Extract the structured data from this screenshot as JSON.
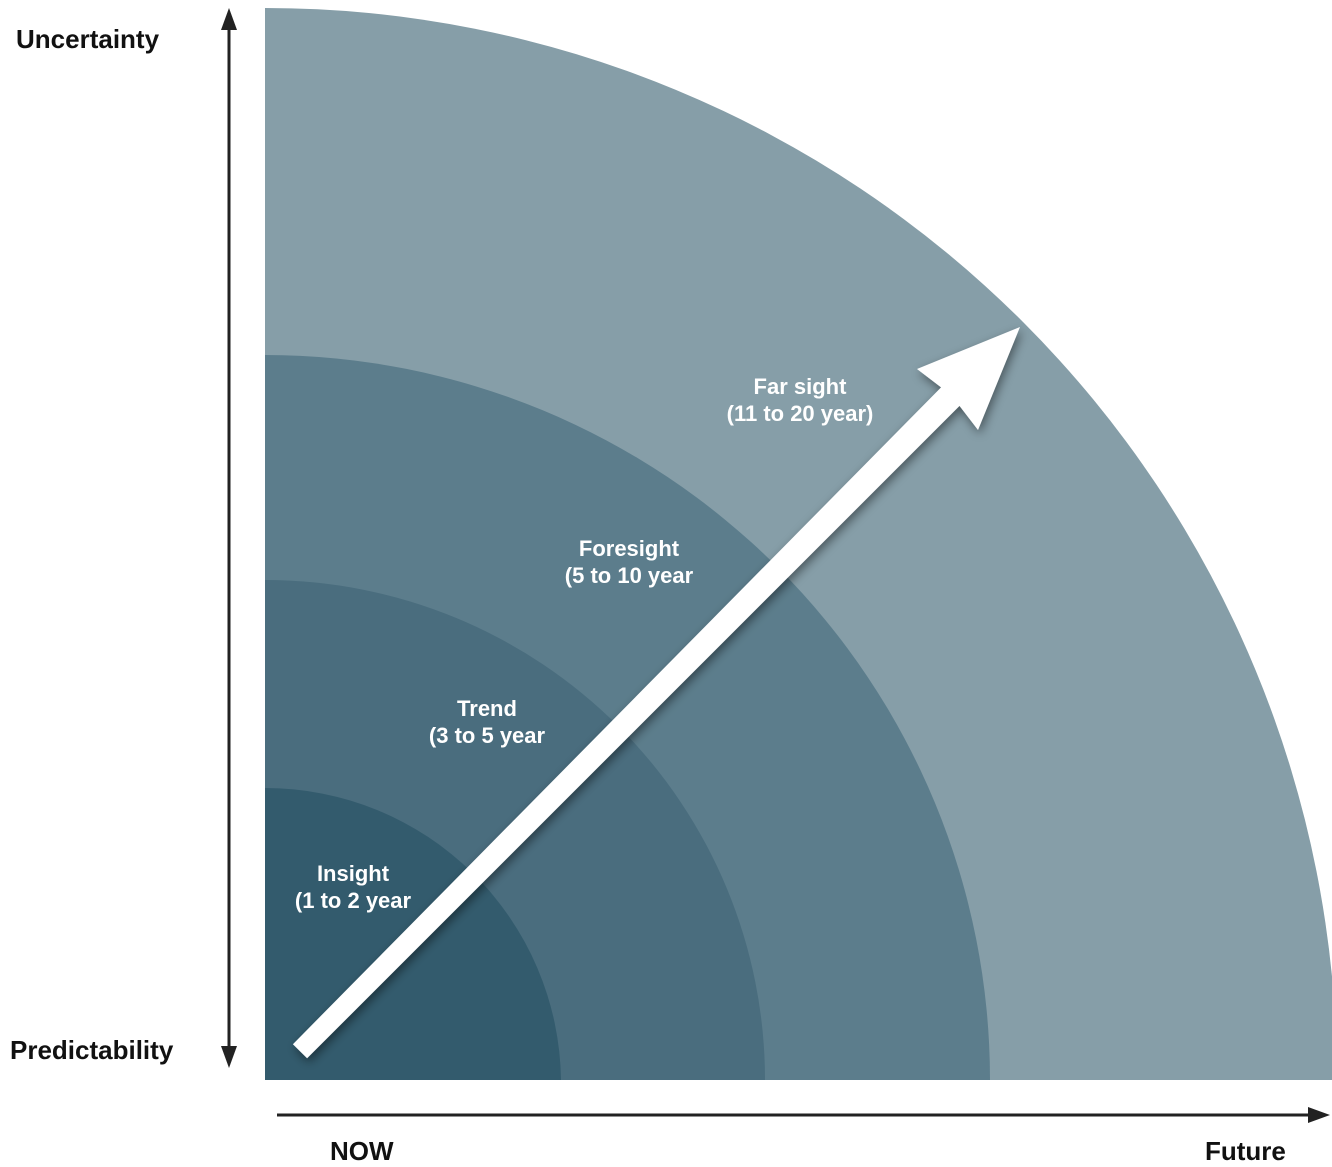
{
  "axis": {
    "y_top": "Uncertainty",
    "y_bottom": "Predictability",
    "x_left": "NOW",
    "x_right": "Future"
  },
  "rings": [
    {
      "name": "Insight",
      "range": "(1 to 2 year",
      "color": "#335b6d"
    },
    {
      "name": "Trend",
      "range": "(3 to 5 year",
      "color": "#4a6d7e"
    },
    {
      "name": "Foresight",
      "range": "(5 to 10 year",
      "color": "#5c7d8c"
    },
    {
      "name": "Far sight",
      "range": "(11 to 20 year)",
      "color": "#869ea8"
    }
  ],
  "arrow_color": "#ffffff",
  "axis_color": "#222222"
}
